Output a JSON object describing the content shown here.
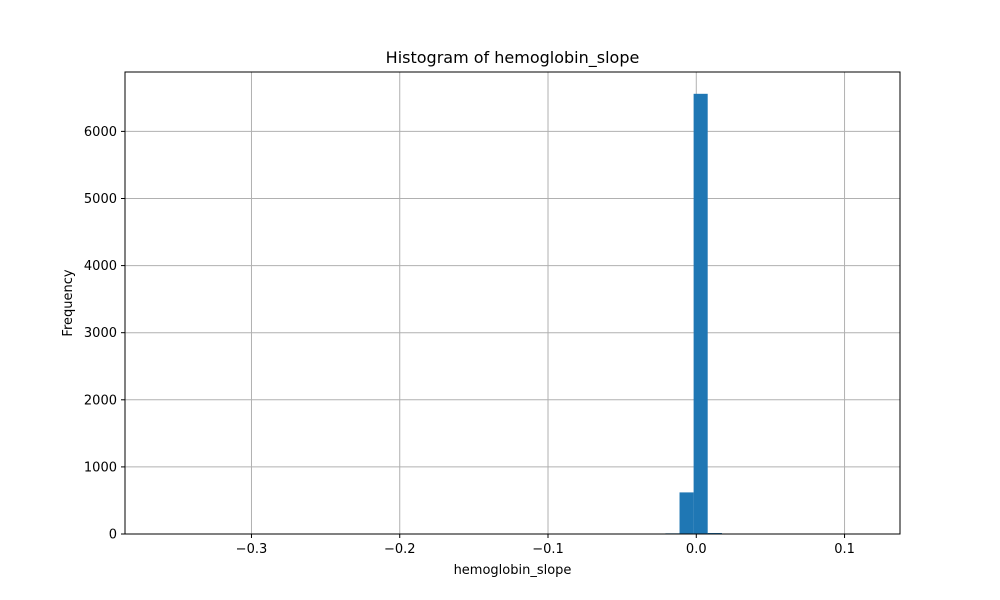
{
  "chart_data": {
    "type": "bar",
    "title": "Histogram of hemoglobin_slope",
    "xlabel": "hemoglobin_slope",
    "ylabel": "Frequency",
    "xlim": [
      -0.3853,
      0.1374
    ],
    "ylim": [
      0,
      6885
    ],
    "grid": true,
    "bar_color": "#1f77b4",
    "x_ticks": [
      {
        "value": -0.3,
        "label": "−0.3"
      },
      {
        "value": -0.2,
        "label": "−0.2"
      },
      {
        "value": -0.1,
        "label": "−0.1"
      },
      {
        "value": 0.0,
        "label": "0.0"
      },
      {
        "value": 0.1,
        "label": "0.1"
      }
    ],
    "y_ticks": [
      {
        "value": 0,
        "label": "0"
      },
      {
        "value": 1000,
        "label": "1000"
      },
      {
        "value": 2000,
        "label": "2000"
      },
      {
        "value": 3000,
        "label": "3000"
      },
      {
        "value": 4000,
        "label": "4000"
      },
      {
        "value": 5000,
        "label": "5000"
      },
      {
        "value": 6000,
        "label": "6000"
      }
    ],
    "bins": [
      {
        "x0": -0.0208,
        "x1": -0.0113,
        "count": 10
      },
      {
        "x0": -0.0113,
        "x1": -0.0018,
        "count": 620
      },
      {
        "x0": -0.0018,
        "x1": 0.0077,
        "count": 6560
      },
      {
        "x0": 0.0077,
        "x1": 0.0173,
        "count": 15
      }
    ]
  }
}
